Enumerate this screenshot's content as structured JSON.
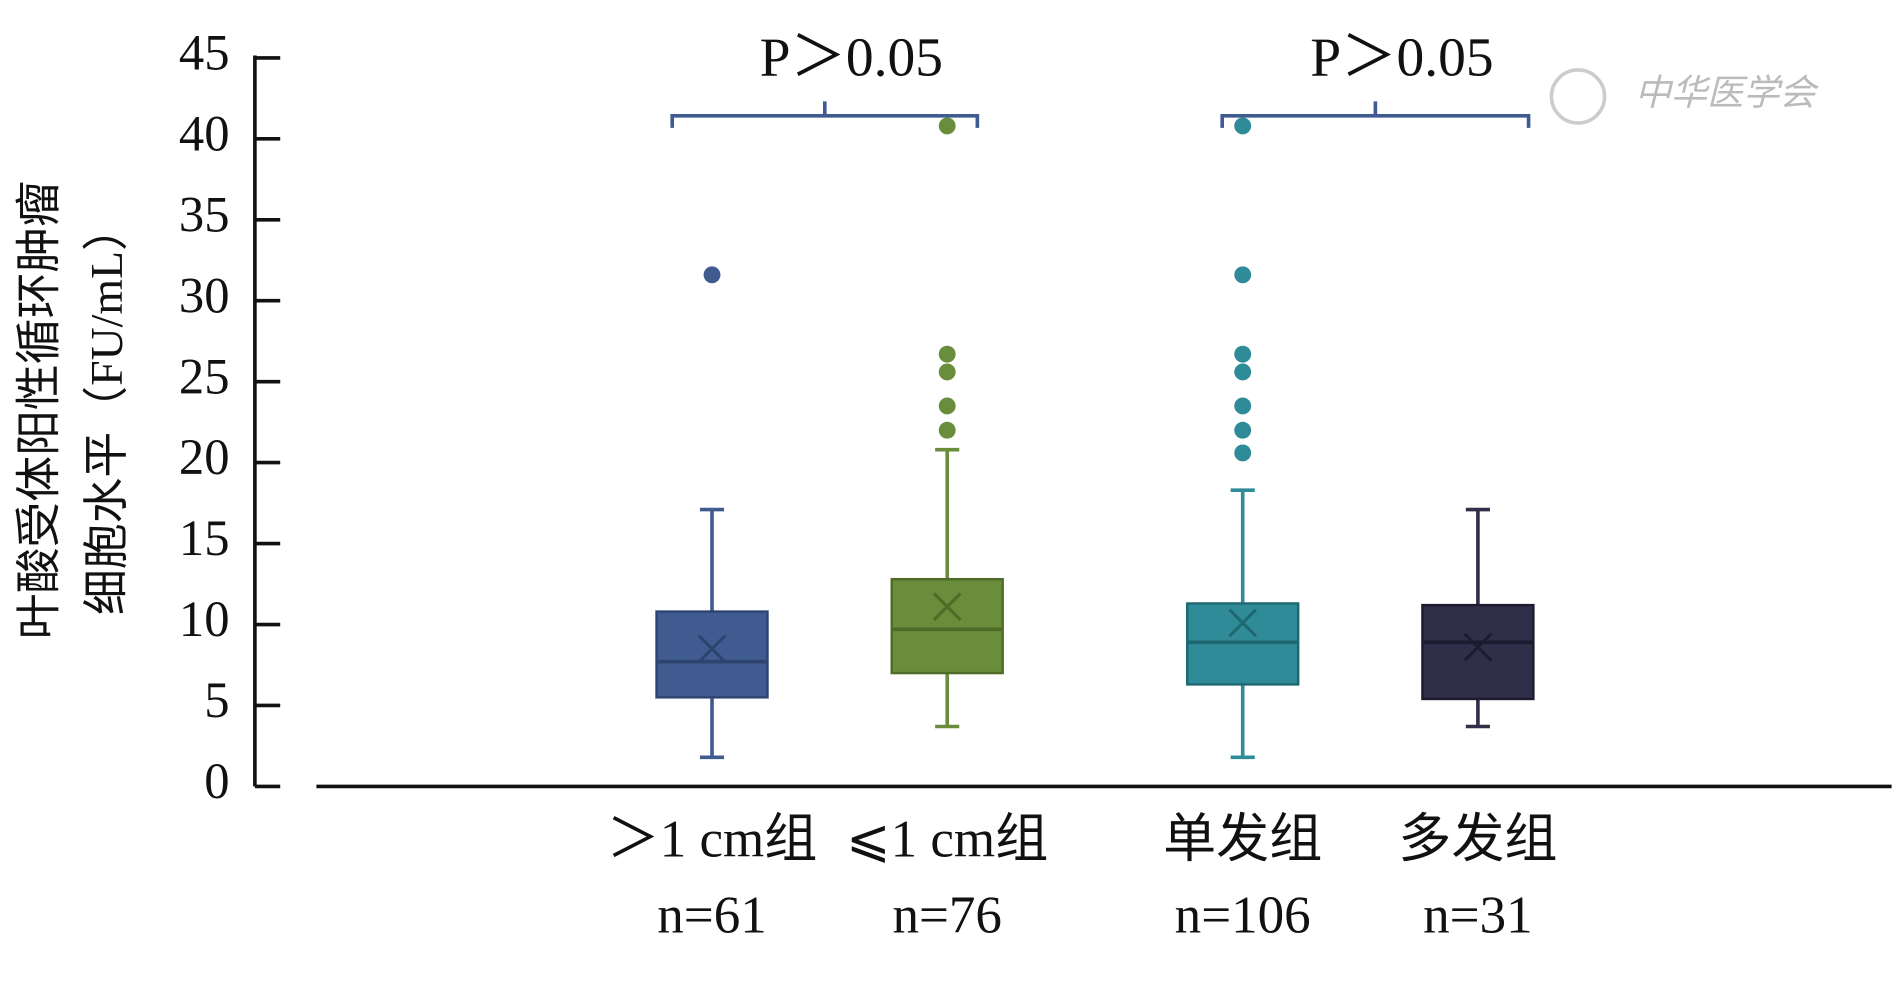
{
  "chart_data": {
    "type": "box",
    "y_label_lines": [
      "叶酸受体阳性循环肿瘤",
      "细胞水平（FU/mL）"
    ],
    "categories": [
      "＞1 cm组",
      "⩽1 cm组",
      "单发组",
      "多发组"
    ],
    "n_labels": [
      "n=61",
      "n=76",
      "n=106",
      "n=31"
    ],
    "colors": [
      "#3f5b8f",
      "#6a8d3b",
      "#2f8b97",
      "#302e48"
    ],
    "boxes": [
      {
        "whislo": 1.8,
        "q1": 5.5,
        "med": 7.7,
        "q3": 10.8,
        "whishi": 17.1,
        "mean": 8.5,
        "fliers": [
          31.6
        ]
      },
      {
        "whislo": 3.7,
        "q1": 7.0,
        "med": 9.7,
        "q3": 12.8,
        "whishi": 20.8,
        "mean": 11.1,
        "fliers": [
          22.0,
          23.5,
          25.6,
          26.7,
          40.8
        ]
      },
      {
        "whislo": 1.8,
        "q1": 6.3,
        "med": 8.9,
        "q3": 11.3,
        "whishi": 18.3,
        "mean": 10.1,
        "fliers": [
          20.6,
          22.0,
          23.5,
          25.6,
          26.7,
          31.6,
          40.8
        ]
      },
      {
        "whislo": 3.7,
        "q1": 5.4,
        "med": 8.9,
        "q3": 11.2,
        "whishi": 17.1,
        "mean": 8.6,
        "fliers": []
      }
    ],
    "annotations": [
      "P＞0.05",
      "P＞0.05"
    ],
    "watermark": "中华医学会",
    "ylim": [
      0,
      45
    ],
    "yticks": [
      0,
      5,
      10,
      15,
      20,
      25,
      30,
      35,
      40,
      45
    ]
  }
}
